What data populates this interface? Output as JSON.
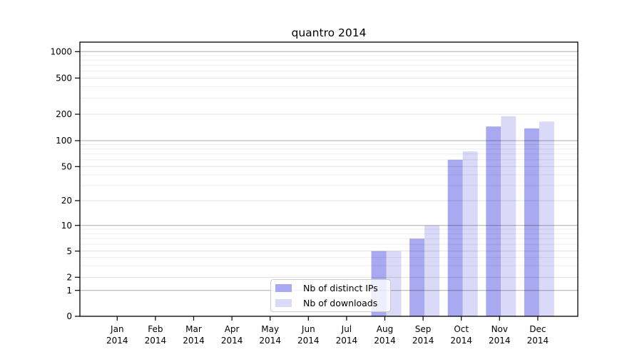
{
  "chart_data": {
    "type": "bar",
    "title": "quantro 2014",
    "categories": [
      "Jan",
      "Feb",
      "Mar",
      "Apr",
      "May",
      "Jun",
      "Jul",
      "Aug",
      "Sep",
      "Oct",
      "Nov",
      "Dec"
    ],
    "x_year": "2014",
    "series": [
      {
        "name": "Nb of distinct IPs",
        "color": "#a9a9f1",
        "values": [
          0,
          0,
          0,
          0,
          0,
          0,
          0,
          5,
          7,
          60,
          145,
          138
        ]
      },
      {
        "name": "Nb of downloads",
        "color": "#dadaf8",
        "values": [
          0,
          0,
          0,
          0,
          0,
          0,
          0,
          5,
          10,
          75,
          190,
          165
        ]
      }
    ],
    "y_axis": {
      "scale": "log-with-zero-baseline",
      "tick_labels": [
        "0",
        "1",
        "2",
        "5",
        "10",
        "20",
        "50",
        "100",
        "200",
        "500",
        "1000"
      ],
      "ticks": [
        {
          "value": 0,
          "frac": 0.0
        },
        {
          "value": 1,
          "frac": 0.0945
        },
        {
          "value": 2,
          "frac": 0.1424
        },
        {
          "value": 5,
          "frac": 0.2378
        },
        {
          "value": 10,
          "frac": 0.3315
        },
        {
          "value": 20,
          "frac": 0.4219
        },
        {
          "value": 50,
          "frac": 0.5461
        },
        {
          "value": 100,
          "frac": 0.6406
        },
        {
          "value": 200,
          "frac": 0.737
        },
        {
          "value": 500,
          "frac": 0.869
        },
        {
          "value": 1000,
          "frac": 0.9654
        }
      ],
      "minor_values": [
        3,
        4,
        6,
        7,
        8,
        9,
        30,
        40,
        60,
        70,
        80,
        90,
        300,
        400,
        600,
        700,
        800,
        900
      ]
    },
    "legend": {
      "position": "inside-lower-center-left"
    },
    "grid": true
  }
}
